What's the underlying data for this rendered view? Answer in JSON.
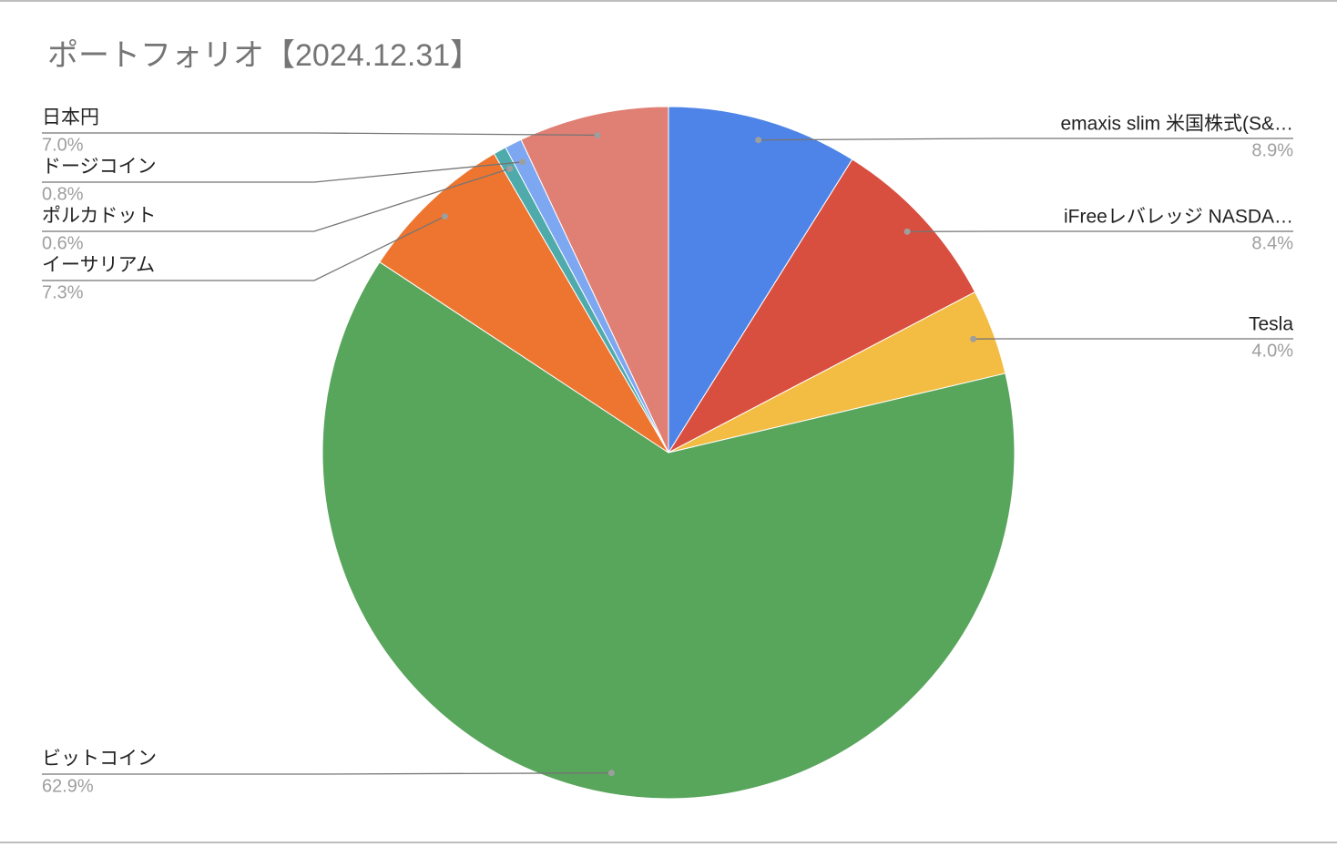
{
  "chart_data": {
    "type": "pie",
    "title": "ポートフォリオ【2024.12.31】",
    "categories": [
      "emaxis slim 米国株式(S&…",
      "iFreeレバレッジ NASDA…",
      "Tesla",
      "ビットコイン",
      "イーサリアム",
      "ポルカドット",
      "ドージコイン",
      "日本円"
    ],
    "values": [
      8.9,
      8.4,
      4.0,
      62.9,
      7.3,
      0.6,
      0.8,
      7.0
    ],
    "value_labels": [
      "8.9%",
      "8.4%",
      "4.0%",
      "62.9%",
      "7.3%",
      "0.6%",
      "0.8%",
      "7.0%"
    ],
    "colors": [
      "#4e84e8",
      "#d94f3f",
      "#f3bc43",
      "#58a55c",
      "#ed7530",
      "#4fabab",
      "#7ea7f2",
      "#e07f73"
    ]
  }
}
